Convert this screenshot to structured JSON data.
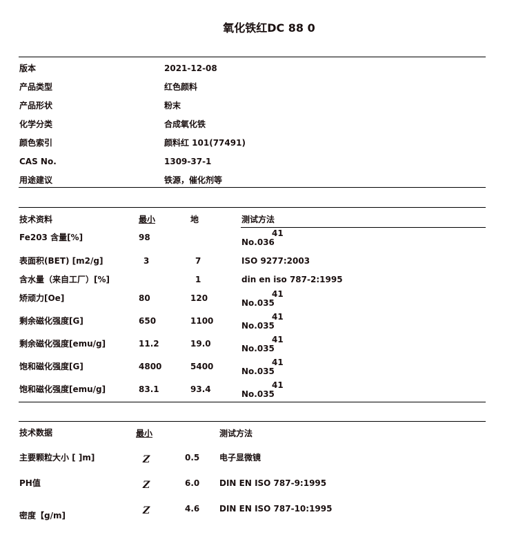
{
  "title": "氧化铁红DC 88 0",
  "info": [
    {
      "label": "版本",
      "value": "2021-12-08"
    },
    {
      "label": "产品类型",
      "value": "红色颜料"
    },
    {
      "label": "产品形状",
      "value": "粉末"
    },
    {
      "label": "化学分类",
      "value": "合成氧化铁"
    },
    {
      "label": "颜色索引",
      "value": "颜料红  101(77491)"
    },
    {
      "label": "CAS No.",
      "value": "1309-37-1"
    },
    {
      "label": "用途建议",
      "value": "铁源，催化剂等"
    }
  ],
  "tech": {
    "headers": {
      "name": "技术资料",
      "min": "最小",
      "max": "地",
      "method": "测试方法"
    },
    "rows": [
      {
        "name": "Fe203 含量[%]",
        "min": "98",
        "max": "",
        "method": "No.036",
        "sup": "41"
      },
      {
        "name": "表面积(BET) [m2/g]",
        "min": "3",
        "max": "7",
        "method": "ISO 9277:2003",
        "sup": ""
      },
      {
        "name": "含水量（来自工厂）[%]",
        "min": "",
        "max": "1",
        "method": "din en iso 787-2:1995",
        "sup": ""
      },
      {
        "name": "矫顽力[Oe]",
        "min": "80",
        "max": "120",
        "method": "No.035",
        "sup": "41"
      },
      {
        "name": "剩余磁化强度[G]",
        "min": "650",
        "max": "1100",
        "method": "No.035",
        "sup": "41"
      },
      {
        "name": "剩余磁化强度[emu/g]",
        "min": "11.2",
        "max": "19.0",
        "method": "No.035",
        "sup": "41"
      },
      {
        "name": "饱和磁化强度[G]",
        "min": "4800",
        "max": "5400",
        "method": "No.035",
        "sup": "41"
      },
      {
        "name": "饱和磁化强度[emu/g]",
        "min": "83.1",
        "max": "93.4",
        "method": "No.035",
        "sup": "41"
      }
    ]
  },
  "data": {
    "headers": {
      "name": "技术数据",
      "min": "最小",
      "method": "测试方法"
    },
    "rows": [
      {
        "name": "主要颗粒大小 [ ]m]",
        "sym": "Z",
        "value": "0.5",
        "method": "电子显微镜"
      },
      {
        "name": "PH值",
        "sym": "Z",
        "value": "6.0",
        "method": "DIN EN ISO 787-9:1995"
      },
      {
        "name": "密度【g/m]",
        "sym": "Z",
        "value": "4.6",
        "method": "DIN EN ISO 787-10:1995"
      }
    ]
  }
}
